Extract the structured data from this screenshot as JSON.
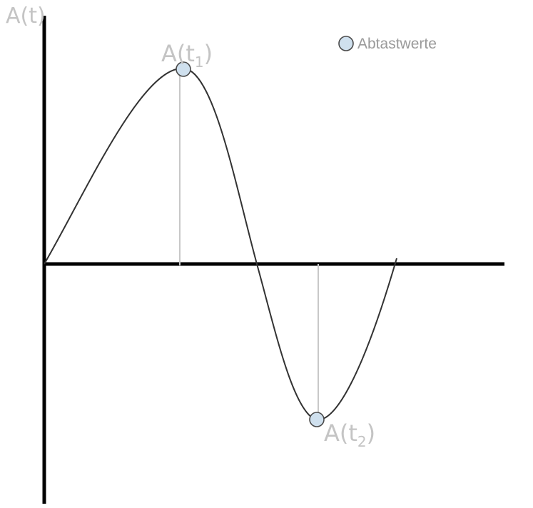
{
  "axis": {
    "y_label": "A(t)"
  },
  "legend": {
    "label": "Abtastwerte",
    "marker_color": "#cfe0ee"
  },
  "samples": [
    {
      "label_base": "A(t",
      "label_sub": "1",
      "label_close": ")"
    },
    {
      "label_base": "A(t",
      "label_sub": "2",
      "label_close": ")"
    }
  ],
  "colors": {
    "axis": "#000000",
    "curve": "#333333",
    "guide_line": "#c8c8c8",
    "marker_fill": "#cfe0ee",
    "marker_stroke": "#4a4a4a",
    "label": "#c4c4c4"
  }
}
